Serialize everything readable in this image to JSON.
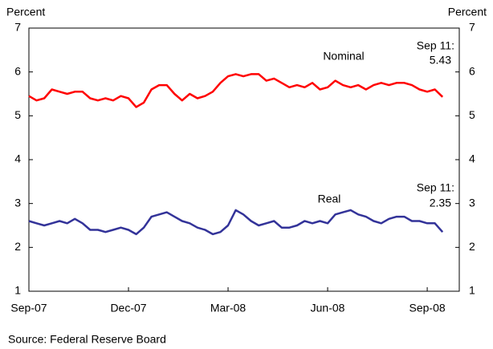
{
  "chart_data": {
    "type": "line",
    "y_axis_label": "Percent",
    "y2_axis_label": "Percent",
    "source": "Source: Federal Reserve Board",
    "categories": [
      "Sep-07",
      null,
      null,
      null,
      null,
      null,
      null,
      null,
      null,
      null,
      null,
      null,
      null,
      "Dec-07",
      null,
      null,
      null,
      null,
      null,
      null,
      null,
      null,
      null,
      null,
      null,
      null,
      "Mar-08",
      null,
      null,
      null,
      null,
      null,
      null,
      null,
      null,
      null,
      null,
      null,
      null,
      "Jun-08",
      null,
      null,
      null,
      null,
      null,
      null,
      null,
      null,
      null,
      null,
      null,
      null,
      "Sep-08",
      null,
      null
    ],
    "series": [
      {
        "name": "Nominal",
        "color": "#ff0000",
        "values": [
          5.45,
          5.35,
          5.4,
          5.6,
          5.55,
          5.5,
          5.55,
          5.55,
          5.4,
          5.35,
          5.4,
          5.35,
          5.45,
          5.4,
          5.2,
          5.3,
          5.6,
          5.7,
          5.7,
          5.5,
          5.35,
          5.5,
          5.4,
          5.45,
          5.55,
          5.75,
          5.9,
          5.95,
          5.9,
          5.95,
          5.95,
          5.8,
          5.85,
          5.75,
          5.65,
          5.7,
          5.65,
          5.75,
          5.6,
          5.65,
          5.8,
          5.7,
          5.65,
          5.7,
          5.6,
          5.7,
          5.75,
          5.7,
          5.75,
          5.75,
          5.7,
          5.6,
          5.55,
          5.6,
          5.43
        ]
      },
      {
        "name": "Real",
        "color": "#333399",
        "values": [
          2.6,
          2.55,
          2.5,
          2.55,
          2.6,
          2.55,
          2.65,
          2.55,
          2.4,
          2.4,
          2.35,
          2.4,
          2.45,
          2.4,
          2.3,
          2.45,
          2.7,
          2.75,
          2.8,
          2.7,
          2.6,
          2.55,
          2.45,
          2.4,
          2.3,
          2.35,
          2.5,
          2.85,
          2.75,
          2.6,
          2.5,
          2.55,
          2.6,
          2.45,
          2.45,
          2.5,
          2.6,
          2.55,
          2.6,
          2.55,
          2.75,
          2.8,
          2.85,
          2.75,
          2.7,
          2.6,
          2.55,
          2.65,
          2.7,
          2.7,
          2.6,
          2.6,
          2.55,
          2.55,
          2.35
        ]
      }
    ],
    "annotations": [
      {
        "lines": [
          "Sep 11:",
          "5.43"
        ]
      },
      {
        "lines": [
          "Sep 11:",
          "2.35"
        ]
      }
    ],
    "ylim": [
      1,
      7
    ],
    "yticks": [
      1,
      2,
      3,
      4,
      5,
      6,
      7
    ],
    "y2lim": [
      1,
      7
    ],
    "y2ticks": [
      1,
      2,
      3,
      4,
      5,
      6,
      7
    ]
  }
}
